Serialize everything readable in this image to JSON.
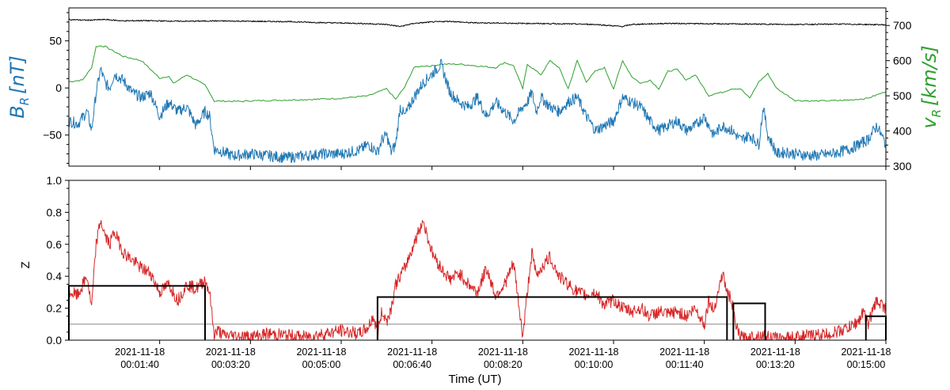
{
  "chart_data": [
    {
      "type": "line",
      "panel": "top",
      "xlabel": "",
      "ylabel_left": "B_R [nT]",
      "ylabel_left_main": "B",
      "ylabel_left_sub": "R",
      "ylabel_left_units": "[nT]",
      "ylabel_right": "v_R [km/s]",
      "ylabel_right_main": "v",
      "ylabel_right_sub": "R",
      "ylabel_right_units": "[km/s]",
      "ylim_left": [
        -83,
        85
      ],
      "ylim_right": [
        300,
        750
      ],
      "yticks_left": [
        "50",
        "0",
        "−50"
      ],
      "yticks_right": [
        "700",
        "600",
        "500",
        "400",
        "300"
      ],
      "xlim_seconds": [
        0,
        900
      ],
      "series": [
        {
          "axis": "right",
          "color": "#000000",
          "values_note_hidden": true,
          "x": [
            0,
            20,
            40,
            60,
            80,
            100,
            130,
            160,
            200,
            240,
            280,
            320,
            350,
            365,
            380,
            400,
            420,
            440,
            470,
            500,
            540,
            580,
            610,
            620,
            660,
            700,
            750,
            800,
            850,
            900
          ],
          "y": [
            717,
            715,
            717,
            713,
            714,
            713,
            712,
            713,
            712,
            711,
            708,
            706,
            703,
            697,
            706,
            710,
            712,
            708,
            707,
            706,
            705,
            703,
            697,
            703,
            706,
            705,
            704,
            703,
            704,
            702
          ]
        },
        {
          "axis": "right",
          "color": "#2ca02c",
          "x": [
            0,
            15,
            25,
            30,
            35,
            40,
            60,
            80,
            100,
            110,
            115,
            130,
            140,
            150,
            155,
            160,
            170,
            190,
            200,
            210,
            240,
            270,
            300,
            330,
            350,
            360,
            370,
            380,
            390,
            400,
            410,
            430,
            450,
            470,
            480,
            490,
            500,
            505,
            510,
            520,
            530,
            540,
            550,
            560,
            570,
            580,
            590,
            600,
            610,
            620,
            630,
            640,
            650,
            660,
            670,
            680,
            690,
            700,
            705,
            710,
            720,
            730,
            740,
            750,
            760,
            770,
            780,
            800,
            820,
            840,
            860,
            880,
            900
          ],
          "y": [
            540,
            545,
            580,
            640,
            642,
            640,
            612,
            600,
            550,
            556,
            535,
            560,
            545,
            530,
            510,
            485,
            485,
            484,
            486,
            486,
            488,
            490,
            493,
            500,
            520,
            490,
            525,
            580,
            585,
            585,
            590,
            590,
            585,
            580,
            595,
            585,
            520,
            590,
            580,
            560,
            600,
            580,
            520,
            600,
            540,
            570,
            580,
            520,
            600,
            555,
            535,
            545,
            520,
            570,
            575,
            545,
            560,
            520,
            500,
            505,
            510,
            520,
            520,
            493,
            540,
            563,
            520,
            487,
            485,
            486,
            488,
            493,
            512
          ]
        },
        {
          "axis": "left",
          "color": "#1f77b4",
          "x": [
            0,
            10,
            20,
            25,
            30,
            35,
            40,
            45,
            50,
            60,
            70,
            80,
            90,
            100,
            110,
            120,
            130,
            140,
            150,
            155,
            160,
            170,
            180,
            200,
            220,
            240,
            260,
            280,
            300,
            320,
            330,
            340,
            345,
            350,
            355,
            360,
            365,
            370,
            380,
            390,
            400,
            410,
            420,
            430,
            440,
            450,
            460,
            470,
            480,
            490,
            500,
            505,
            510,
            515,
            520,
            530,
            540,
            550,
            560,
            570,
            580,
            590,
            600,
            610,
            620,
            630,
            640,
            650,
            660,
            670,
            680,
            690,
            700,
            710,
            720,
            730,
            740,
            750,
            760,
            765,
            770,
            780,
            790,
            800,
            820,
            840,
            860,
            880,
            890,
            900
          ],
          "y": [
            -35,
            -38,
            -25,
            -45,
            -5,
            20,
            5,
            0,
            15,
            8,
            -5,
            -10,
            -5,
            -30,
            -15,
            -25,
            -20,
            -40,
            -25,
            -30,
            -65,
            -68,
            -72,
            -70,
            -72,
            -74,
            -72,
            -70,
            -70,
            -66,
            -60,
            -68,
            -55,
            -50,
            -68,
            -60,
            -20,
            -30,
            -10,
            5,
            15,
            25,
            -5,
            -15,
            -20,
            -10,
            -30,
            -15,
            -25,
            -35,
            -20,
            -15,
            -5,
            -25,
            -10,
            -20,
            -25,
            -15,
            -10,
            -30,
            -45,
            -40,
            -35,
            -10,
            -15,
            -20,
            -35,
            -45,
            -40,
            -35,
            -45,
            -40,
            -30,
            -50,
            -40,
            -45,
            -55,
            -50,
            -60,
            -20,
            -50,
            -70,
            -68,
            -70,
            -72,
            -70,
            -65,
            -55,
            -40,
            -60
          ]
        }
      ]
    },
    {
      "type": "line",
      "panel": "bottom",
      "xlabel": "Time (UT)",
      "ylabel": "Z",
      "ylim": [
        0.0,
        1.0
      ],
      "yticks": [
        "1.0",
        "0.8",
        "0.6",
        "0.4",
        "0.2",
        "0.0"
      ],
      "x_tick_dates": [
        "2021-11-18",
        "2021-11-18",
        "2021-11-18",
        "2021-11-18",
        "2021-11-18",
        "2021-11-18",
        "2021-11-18",
        "2021-11-18",
        "2021-11-18"
      ],
      "x_tick_times": [
        "00:01:40",
        "00:03:20",
        "00:05:00",
        "00:06:40",
        "00:08:20",
        "00:10:00",
        "00:11:40",
        "00:13:20",
        "00:15:00"
      ],
      "x_tick_seconds": [
        100,
        200,
        300,
        400,
        500,
        600,
        700,
        800,
        900
      ],
      "xlim_seconds": [
        0,
        900
      ],
      "threshold": 0.1,
      "series": [
        {
          "color": "#d62728",
          "x": [
            0,
            10,
            20,
            25,
            30,
            35,
            40,
            45,
            50,
            60,
            70,
            80,
            90,
            100,
            110,
            120,
            130,
            140,
            150,
            155,
            160,
            165,
            170,
            180,
            200,
            220,
            240,
            260,
            280,
            300,
            310,
            320,
            330,
            335,
            340,
            345,
            350,
            355,
            360,
            370,
            380,
            390,
            400,
            405,
            410,
            420,
            430,
            440,
            450,
            460,
            470,
            480,
            490,
            500,
            505,
            510,
            515,
            520,
            530,
            540,
            550,
            560,
            570,
            580,
            590,
            600,
            610,
            620,
            630,
            640,
            650,
            660,
            670,
            680,
            690,
            700,
            705,
            710,
            720,
            725,
            730,
            735,
            740,
            745,
            750,
            760,
            780,
            800,
            820,
            840,
            860,
            870,
            875,
            880,
            890,
            900
          ],
          "y": [
            0.3,
            0.28,
            0.4,
            0.2,
            0.6,
            0.75,
            0.65,
            0.6,
            0.68,
            0.55,
            0.5,
            0.45,
            0.42,
            0.3,
            0.35,
            0.25,
            0.35,
            0.32,
            0.38,
            0.3,
            0.04,
            0.06,
            0.03,
            0.03,
            0.02,
            0.04,
            0.03,
            0.02,
            0.04,
            0.06,
            0.05,
            0.04,
            0.08,
            0.15,
            0.05,
            0.18,
            0.12,
            0.2,
            0.35,
            0.45,
            0.6,
            0.75,
            0.55,
            0.5,
            0.45,
            0.38,
            0.42,
            0.35,
            0.3,
            0.45,
            0.28,
            0.35,
            0.48,
            0.02,
            0.3,
            0.55,
            0.4,
            0.45,
            0.52,
            0.4,
            0.35,
            0.3,
            0.28,
            0.3,
            0.22,
            0.25,
            0.2,
            0.18,
            0.2,
            0.15,
            0.18,
            0.16,
            0.18,
            0.15,
            0.2,
            0.1,
            0.25,
            0.18,
            0.42,
            0.3,
            0.25,
            0.08,
            0.02,
            0.01,
            0.02,
            0.03,
            0.01,
            0.02,
            0.03,
            0.04,
            0.08,
            0.12,
            0.18,
            0.1,
            0.25,
            0.2
          ]
        },
        {
          "color": "#000000",
          "steps": [
            {
              "x0": 0,
              "x1": 150,
              "z": 0.34
            },
            {
              "x0": 340,
              "x1": 725,
              "z": 0.27
            },
            {
              "x0": 732,
              "x1": 767,
              "z": 0.23
            },
            {
              "x0": 878,
              "x1": 900,
              "z": 0.15
            }
          ]
        }
      ]
    }
  ]
}
